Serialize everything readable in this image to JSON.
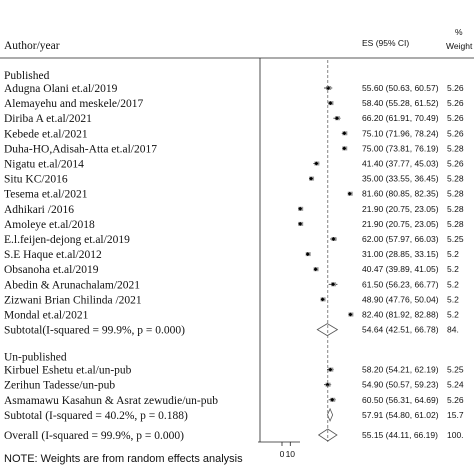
{
  "chart_data": {
    "type": "forest",
    "header": {
      "study": "Author/year",
      "es": "ES (95% CI)",
      "pct": "%",
      "weight": "Weight"
    },
    "xlim": [
      0,
      100
    ],
    "xticks": [
      0,
      10
    ],
    "groups": [
      {
        "name": "Published",
        "studies": [
          {
            "label": "Adugna Olani et.al/2019",
            "es": 55.6,
            "lo": 50.63,
            "hi": 60.57,
            "es_label": "55.60 (50.63, 60.57)",
            "weight": "5.26"
          },
          {
            "label": "Alemayehu and meskele/2017",
            "es": 58.4,
            "lo": 55.28,
            "hi": 61.52,
            "es_label": "58.40 (55.28, 61.52)",
            "weight": "5.26"
          },
          {
            "label": "Diriba A et.al/2021",
            "es": 66.2,
            "lo": 61.91,
            "hi": 70.49,
            "es_label": "66.20 (61.91, 70.49)",
            "weight": "5.26"
          },
          {
            "label": "Kebede et.al/2021",
            "es": 75.1,
            "lo": 71.96,
            "hi": 78.24,
            "es_label": "75.10 (71.96, 78.24)",
            "weight": "5.26"
          },
          {
            "label": "Duha-HO,Adisah-Atta et.al/2017",
            "es": 75.0,
            "lo": 73.81,
            "hi": 76.19,
            "es_label": "75.00 (73.81, 76.19)",
            "weight": "5.28"
          },
          {
            "label": "Nigatu et.al/2014",
            "es": 41.4,
            "lo": 37.77,
            "hi": 45.03,
            "es_label": "41.40 (37.77, 45.03)",
            "weight": "5.26"
          },
          {
            "label": "Situ KC/2016",
            "es": 35.0,
            "lo": 33.55,
            "hi": 36.45,
            "es_label": "35.00 (33.55, 36.45)",
            "weight": "5.28"
          },
          {
            "label": "Tesema et.al/2021",
            "es": 81.6,
            "lo": 80.85,
            "hi": 82.35,
            "es_label": "81.60 (80.85, 82.35)",
            "weight": "5.28"
          },
          {
            "label": "Adhikari /2016",
            "es": 21.9,
            "lo": 20.75,
            "hi": 23.05,
            "es_label": "21.90 (20.75, 23.05)",
            "weight": "5.28"
          },
          {
            "label": "Amoleye et.al/2018",
            "es": 21.9,
            "lo": 20.75,
            "hi": 23.05,
            "es_label": "21.90 (20.75, 23.05)",
            "weight": "5.28"
          },
          {
            "label": "E.l.feijen-dejong et.al/2019",
            "es": 62.0,
            "lo": 57.97,
            "hi": 66.03,
            "es_label": "62.00 (57.97, 66.03)",
            "weight": "5.25"
          },
          {
            "label": "S.E  Haque et.al/2012",
            "es": 31.0,
            "lo": 28.85,
            "hi": 33.15,
            "es_label": "31.00 (28.85, 33.15)",
            "weight": "5.2"
          },
          {
            "label": "Obsanoha et.al/2019",
            "es": 40.47,
            "lo": 39.89,
            "hi": 41.05,
            "es_label": "40.47 (39.89, 41.05)",
            "weight": "5.2"
          },
          {
            "label": "Abedin & Arunachalam/2021",
            "es": 61.5,
            "lo": 56.23,
            "hi": 66.77,
            "es_label": "61.50 (56.23, 66.77)",
            "weight": "5.2"
          },
          {
            "label": "Zizwani Brian Chilinda /2021",
            "es": 48.9,
            "lo": 47.76,
            "hi": 50.04,
            "es_label": "48.90 (47.76, 50.04)",
            "weight": "5.2"
          },
          {
            "label": "Mondal et.al/2021",
            "es": 82.4,
            "lo": 81.92,
            "hi": 82.88,
            "es_label": "82.40 (81.92, 82.88)",
            "weight": "5.2"
          }
        ],
        "subtotal": {
          "label": "Subtotal(I-squared = 99.9%, p = 0.000)",
          "es": 54.64,
          "lo": 42.51,
          "hi": 66.78,
          "es_label": "54.64 (42.51, 66.78)",
          "weight": "84."
        }
      },
      {
        "name": "Un-published",
        "studies": [
          {
            "label": "Kirbuel Eshetu et.al/un-pub",
            "es": 58.2,
            "lo": 54.21,
            "hi": 62.19,
            "es_label": "58.20 (54.21, 62.19)",
            "weight": "5.25"
          },
          {
            "label": "Zerihun Tadesse/un-pub",
            "es": 54.9,
            "lo": 50.57,
            "hi": 59.23,
            "es_label": "54.90 (50.57, 59.23)",
            "weight": "5.24"
          },
          {
            "label": "Asmamawu Kasahun & Asrat zewudie/un-pub",
            "es": 60.5,
            "lo": 56.31,
            "hi": 64.69,
            "es_label": "60.50 (56.31, 64.69)",
            "weight": "5.26"
          }
        ],
        "subtotal": {
          "label": "Subtotal  (I-squared = 40.2%, p = 0.188)",
          "es": 57.91,
          "lo": 54.8,
          "hi": 61.02,
          "es_label": "57.91 (54.80, 61.02)",
          "weight": "15.7"
        }
      }
    ],
    "overall": {
      "label": "Overall  (I-squared = 99.9%, p = 0.000)",
      "es": 55.15,
      "lo": 44.11,
      "hi": 66.19,
      "es_label": "55.15 (44.11, 66.19)",
      "weight": "100."
    },
    "note": "NOTE: Weights are from random effects analysis"
  }
}
